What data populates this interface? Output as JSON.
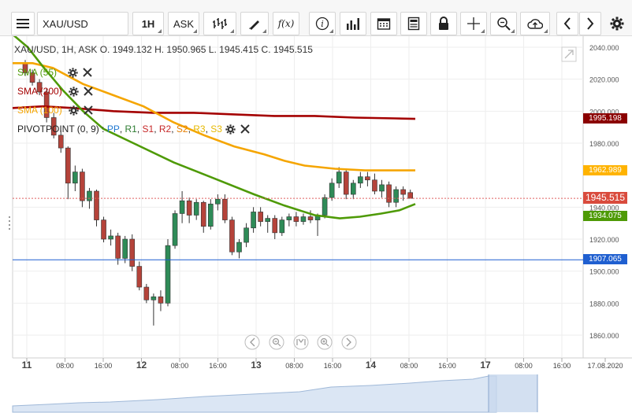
{
  "toolbar": {
    "symbol": "XAU/USD",
    "interval": "1H",
    "price_type": "ASK",
    "fx_label": "f(x)"
  },
  "ohlc_header": {
    "text": "XAU/USD, 1H, ASK   O. 1949.132 H. 1950.965 L. 1945.415 C. 1945.515"
  },
  "indicators": [
    {
      "label": "SMA (55)",
      "color": "#4e9a06"
    },
    {
      "label": "SMA (200)",
      "color": "#a40000"
    },
    {
      "label": "SMA (100)",
      "color": "#f5a500"
    }
  ],
  "pivot": {
    "prefix": "PIVOTPOINT (0, 9)",
    "sep": " : ",
    "items": [
      {
        "label": "PP",
        "color": "#1f77d0"
      },
      {
        "label": "R1",
        "color": "#2e7d32"
      },
      {
        "label": "S1",
        "color": "#c62828"
      },
      {
        "label": "R2",
        "color": "#c62828"
      },
      {
        "label": "S2",
        "color": "#e67e00"
      },
      {
        "label": "R3",
        "color": "#e6b800"
      },
      {
        "label": "S3",
        "color": "#e6b800"
      }
    ]
  },
  "price_axis": {
    "ticks": [
      "2040.000",
      "2020.000",
      "2000.000",
      "1980.000",
      "1940.000",
      "1920.000",
      "1900.000",
      "1880.000",
      "1860.000"
    ]
  },
  "price_labels": [
    {
      "value": "1995.198",
      "bg": "#8b0000"
    },
    {
      "value": "1962.989",
      "bg": "#ffb300"
    },
    {
      "value": "1945.515",
      "bg": "#d94b3d"
    },
    {
      "value": "1934.075",
      "bg": "#4e9a06"
    },
    {
      "value": "1907.065",
      "bg": "#1f5fd0"
    }
  ],
  "time_axis": {
    "labels": [
      "11",
      "08:00",
      "16:00",
      "12",
      "08:00",
      "16:00",
      "13",
      "08:00",
      "16:00",
      "14",
      "08:00",
      "16:00",
      "17",
      "08:00",
      "16:00",
      "17.08.2020"
    ]
  },
  "colors": {
    "bull": "#2e8b57",
    "bear": "#b5433a",
    "current_price_line": "#e06060",
    "pivot_line": "#1f5fd0",
    "grid": "#eeeeee",
    "navigator_fill": "#dbe6f4"
  },
  "icons": {
    "menu": "menu-icon",
    "bars": "bar-chart-icon",
    "draw": "pencil-icon",
    "info": "info-icon",
    "volume": "volume-icon",
    "calendar": "calendar-icon",
    "news": "news-icon",
    "lock": "lock-icon",
    "crosshair": "crosshair-icon",
    "zoom": "zoom-icon",
    "cloud": "cloud-upload-icon",
    "prev": "chevron-left-icon",
    "next": "chevron-right-icon",
    "settings": "gear-icon",
    "expand": "expand-icon"
  },
  "chart_data": {
    "type": "candlestick",
    "instrument": "XAU/USD",
    "timeframe": "1H",
    "ylim": [
      1850,
      2048
    ],
    "sma55": [
      [
        0,
        2048
      ],
      [
        15,
        2040
      ],
      [
        30,
        2028
      ],
      [
        50,
        2013
      ],
      [
        70,
        2000
      ],
      [
        90,
        1989
      ],
      [
        120,
        1980
      ],
      [
        160,
        1968
      ],
      [
        200,
        1958
      ],
      [
        240,
        1948
      ],
      [
        270,
        1941
      ],
      [
        300,
        1935
      ],
      [
        325,
        1933
      ],
      [
        345,
        1934
      ],
      [
        366,
        1936
      ],
      [
        384,
        1938
      ],
      [
        400,
        1942
      ]
    ],
    "sma200": [
      [
        0,
        2002
      ],
      [
        30,
        2003
      ],
      [
        60,
        2002
      ],
      [
        100,
        2000
      ],
      [
        140,
        1999
      ],
      [
        180,
        1999
      ],
      [
        220,
        1998
      ],
      [
        260,
        1997
      ],
      [
        300,
        1997
      ],
      [
        340,
        1996
      ],
      [
        380,
        1995.5
      ],
      [
        400,
        1995.2
      ]
    ],
    "sma100": [
      [
        0,
        2030
      ],
      [
        20,
        2030
      ],
      [
        40,
        2027
      ],
      [
        70,
        2017
      ],
      [
        100,
        2010
      ],
      [
        130,
        2003
      ],
      [
        160,
        1993
      ],
      [
        190,
        1985
      ],
      [
        220,
        1978
      ],
      [
        250,
        1973
      ],
      [
        270,
        1969
      ],
      [
        290,
        1966
      ],
      [
        320,
        1964
      ],
      [
        350,
        1963
      ],
      [
        380,
        1963
      ],
      [
        400,
        1963
      ]
    ],
    "candles": [
      [
        2030,
        2032,
        2022,
        2024
      ],
      [
        2024,
        2026,
        2016,
        2018
      ],
      [
        2018,
        2020,
        2010,
        2012
      ],
      [
        2012,
        2014,
        1993,
        1996
      ],
      [
        1996,
        1999,
        1983,
        1985
      ],
      [
        1985,
        1988,
        1974,
        1977
      ],
      [
        1977,
        1978,
        1945,
        1955
      ],
      [
        1955,
        1966,
        1950,
        1962
      ],
      [
        1962,
        1964,
        1940,
        1944
      ],
      [
        1944,
        1952,
        1939,
        1950
      ],
      [
        1950,
        1951,
        1928,
        1932
      ],
      [
        1932,
        1934,
        1918,
        1920
      ],
      [
        1920,
        1926,
        1916,
        1922
      ],
      [
        1922,
        1924,
        1904,
        1908
      ],
      [
        1908,
        1922,
        1905,
        1920
      ],
      [
        1920,
        1923,
        1900,
        1903
      ],
      [
        1903,
        1906,
        1888,
        1890
      ],
      [
        1890,
        1892,
        1880,
        1882
      ],
      [
        1882,
        1886,
        1866,
        1884
      ],
      [
        1884,
        1888,
        1875,
        1880
      ],
      [
        1880,
        1920,
        1878,
        1916
      ],
      [
        1916,
        1938,
        1914,
        1936
      ],
      [
        1936,
        1950,
        1930,
        1944
      ],
      [
        1944,
        1946,
        1930,
        1935
      ],
      [
        1935,
        1945,
        1932,
        1943
      ],
      [
        1943,
        1944,
        1924,
        1928
      ],
      [
        1928,
        1945,
        1926,
        1942
      ],
      [
        1942,
        1948,
        1938,
        1945
      ],
      [
        1945,
        1948,
        1930,
        1932
      ],
      [
        1932,
        1934,
        1910,
        1912
      ],
      [
        1912,
        1920,
        1908,
        1918
      ],
      [
        1918,
        1930,
        1915,
        1927
      ],
      [
        1927,
        1940,
        1924,
        1937
      ],
      [
        1937,
        1940,
        1928,
        1931
      ],
      [
        1931,
        1935,
        1924,
        1933
      ],
      [
        1933,
        1935,
        1920,
        1924
      ],
      [
        1924,
        1934,
        1922,
        1932
      ],
      [
        1932,
        1936,
        1928,
        1934
      ],
      [
        1934,
        1937,
        1928,
        1931
      ],
      [
        1931,
        1936,
        1929,
        1934
      ],
      [
        1934,
        1938,
        1930,
        1932
      ],
      [
        1932,
        1936,
        1922,
        1935
      ],
      [
        1935,
        1948,
        1933,
        1946
      ],
      [
        1946,
        1958,
        1944,
        1955
      ],
      [
        1955,
        1965,
        1952,
        1962
      ],
      [
        1962,
        1964,
        1945,
        1948
      ],
      [
        1948,
        1957,
        1945,
        1955
      ],
      [
        1955,
        1962,
        1952,
        1959
      ],
      [
        1959,
        1962,
        1953,
        1957
      ],
      [
        1957,
        1961,
        1948,
        1950
      ],
      [
        1950,
        1957,
        1946,
        1954
      ],
      [
        1954,
        1956,
        1940,
        1943
      ],
      [
        1943,
        1953,
        1940,
        1951
      ],
      [
        1951,
        1953,
        1944,
        1948
      ],
      [
        1949.132,
        1950.965,
        1945.415,
        1945.515
      ]
    ],
    "current_price": 1945.515,
    "pivot_level": 1907.065
  }
}
